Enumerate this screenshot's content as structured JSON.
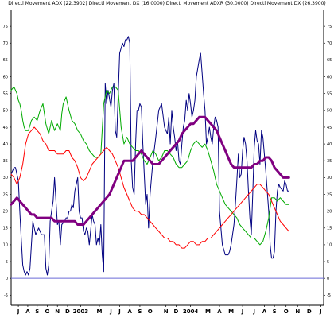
{
  "chart_data": {
    "type": "line",
    "title": "Directl Movement ADX (22.3902) Directl Movement DX (16.0000) Directl Movement ADXR (30.0000) Directl Movement DX (26.3900)",
    "xlabel": "",
    "ylabel": "",
    "ylim": [
      -8,
      80
    ],
    "y_ticks": [
      -5,
      0,
      5,
      10,
      15,
      20,
      25,
      30,
      35,
      40,
      45,
      50,
      55,
      60,
      65,
      70,
      75
    ],
    "x_labels": [
      "J",
      "A",
      "S",
      "O",
      "N",
      "D",
      "2003",
      "M",
      "J",
      "J",
      "A",
      "S",
      "O",
      "N",
      "D",
      "2004",
      "M",
      "A",
      "M",
      "J",
      "J",
      "A",
      "S",
      "O",
      "N",
      "D",
      "J"
    ],
    "x_label_positions": [
      5,
      11.5,
      18,
      25,
      32,
      39,
      48,
      61,
      69,
      75,
      82,
      89,
      96,
      107,
      114,
      124,
      136,
      144,
      152,
      160,
      168,
      175,
      182,
      190,
      198,
      206,
      214
    ],
    "x_range": [
      0,
      216
    ],
    "grid": false,
    "reference_line": 0,
    "series": [
      {
        "color": "#000080",
        "width": 1,
        "x": [
          0,
          2,
          3,
          4,
          5,
          6,
          7,
          8,
          9,
          10,
          11,
          12,
          13,
          15,
          17,
          19,
          21,
          23,
          24,
          25,
          26,
          27,
          28,
          29,
          30,
          32,
          33,
          34,
          35,
          37,
          38,
          39,
          40,
          41,
          42,
          43,
          44,
          45,
          46,
          47,
          48,
          49,
          50,
          51,
          52,
          53,
          54,
          56,
          57,
          58,
          59,
          60,
          61,
          62,
          63,
          64,
          65,
          66,
          67,
          69,
          70,
          71,
          72,
          73,
          75,
          77,
          78,
          79,
          80,
          81,
          82,
          83,
          84,
          85,
          86,
          87,
          88,
          89,
          90,
          91,
          93,
          94,
          95,
          96,
          98,
          100,
          102,
          104,
          106,
          108,
          109,
          110,
          111,
          112,
          113,
          114,
          115,
          116,
          117,
          118,
          119,
          120,
          121,
          122,
          123,
          124,
          125,
          126,
          127,
          128,
          130,
          131,
          132,
          133,
          134,
          135,
          136,
          137,
          138,
          139,
          140,
          141,
          142,
          143,
          144,
          145,
          146,
          148,
          150,
          151,
          152,
          154,
          155,
          156,
          157,
          158,
          159,
          160,
          161,
          162,
          163,
          164,
          165,
          166,
          167,
          168,
          169,
          170,
          171,
          172,
          173,
          174,
          175,
          176,
          178,
          179,
          180,
          181,
          182,
          183,
          184,
          185,
          186,
          188,
          189,
          190,
          191,
          192
        ],
        "values": [
          31,
          33,
          33,
          31,
          29,
          20,
          12,
          4,
          2,
          1,
          2,
          1,
          3,
          17,
          13,
          15,
          13,
          13,
          3,
          1,
          4,
          17,
          20,
          23,
          30,
          16,
          17,
          10,
          16,
          17,
          18,
          18,
          20,
          20,
          22,
          21,
          26,
          28,
          30,
          20,
          18,
          18,
          14,
          13,
          15,
          14,
          10,
          19,
          17,
          16,
          10,
          12,
          10,
          16,
          7,
          2,
          58,
          52,
          56,
          51,
          56,
          58,
          44,
          42,
          67,
          70,
          69,
          71,
          71,
          72,
          70,
          35,
          27,
          25,
          40,
          50,
          50,
          52,
          51,
          40,
          22,
          25,
          15,
          25,
          35,
          42,
          50,
          52,
          45,
          43,
          48,
          40,
          50,
          45,
          42,
          38,
          41,
          35,
          34,
          40,
          45,
          47,
          53,
          50,
          55,
          52,
          48,
          50,
          53,
          60,
          65,
          67,
          61,
          55,
          50,
          40,
          42,
          45,
          42,
          40,
          45,
          48,
          47,
          45,
          20,
          15,
          10,
          7,
          7,
          8,
          10,
          16,
          22,
          29,
          37,
          30,
          31,
          38,
          42,
          40,
          35,
          26,
          18,
          13,
          25,
          39,
          44,
          41,
          40,
          34,
          44,
          42,
          37,
          32,
          20,
          10,
          6,
          6,
          8,
          20,
          26,
          28,
          27,
          26,
          29,
          28,
          26,
          26
        ]
      },
      {
        "color": "#00aa00",
        "width": 1,
        "x": [
          0,
          2,
          4,
          5,
          6,
          7,
          8,
          9,
          10,
          12,
          14,
          16,
          18,
          20,
          22,
          24,
          26,
          28,
          30,
          32,
          34,
          35,
          36,
          38,
          40,
          42,
          44,
          46,
          48,
          50,
          52,
          54,
          56,
          58,
          60,
          62,
          64,
          66,
          68,
          70,
          72,
          74,
          76,
          78,
          80,
          82,
          84,
          86,
          88,
          90,
          92,
          94,
          96,
          98,
          100,
          102,
          104,
          106,
          108,
          110,
          112,
          114,
          116,
          118,
          120,
          122,
          124,
          126,
          128,
          130,
          132,
          134,
          136,
          138,
          140,
          142,
          144,
          146,
          148,
          150,
          152,
          154,
          156,
          158,
          160,
          162,
          164,
          166,
          168,
          170,
          172,
          174,
          176,
          178,
          180,
          182,
          184,
          186,
          188,
          190,
          192
        ],
        "values": [
          56,
          57,
          55,
          53,
          52,
          50,
          47,
          45,
          44,
          44,
          47,
          48,
          47,
          50,
          52,
          46,
          43,
          47,
          44,
          46,
          44,
          49,
          52,
          54,
          50,
          47,
          46,
          44,
          43,
          41,
          40,
          38,
          37,
          36,
          36,
          37,
          52,
          56,
          55,
          57,
          57,
          56,
          45,
          40,
          42,
          40,
          39,
          38,
          38,
          37,
          35,
          34,
          36,
          38,
          37,
          35,
          36,
          38,
          38,
          37,
          36,
          34,
          33,
          33,
          34,
          35,
          38,
          40,
          41,
          40,
          39,
          40,
          38,
          35,
          32,
          28,
          26,
          24,
          22,
          21,
          20,
          19,
          18,
          16,
          15,
          14,
          13,
          12,
          12,
          11,
          10,
          11,
          14,
          18,
          24,
          24,
          23,
          24,
          23,
          22,
          22
        ]
      },
      {
        "color": "#ff0000",
        "width": 1,
        "x": [
          0,
          2,
          4,
          6,
          8,
          10,
          12,
          14,
          16,
          18,
          20,
          22,
          24,
          26,
          28,
          30,
          32,
          34,
          36,
          38,
          40,
          42,
          44,
          46,
          48,
          50,
          52,
          54,
          56,
          58,
          60,
          62,
          64,
          66,
          68,
          70,
          72,
          74,
          76,
          78,
          80,
          82,
          84,
          86,
          88,
          90,
          92,
          94,
          96,
          98,
          100,
          102,
          104,
          106,
          108,
          110,
          112,
          114,
          116,
          118,
          120,
          122,
          124,
          126,
          128,
          130,
          132,
          134,
          136,
          138,
          140,
          142,
          144,
          146,
          148,
          150,
          152,
          154,
          156,
          158,
          160,
          162,
          164,
          166,
          168,
          170,
          172,
          174,
          176,
          178,
          180,
          182,
          184,
          186,
          188,
          190,
          192
        ],
        "values": [
          31,
          30,
          28,
          30,
          34,
          40,
          43,
          44,
          45,
          44,
          43,
          41,
          40,
          38,
          38,
          38,
          37,
          37,
          37,
          38,
          38,
          36,
          35,
          33,
          30,
          29,
          30,
          32,
          34,
          35,
          36,
          37,
          38,
          39,
          38,
          37,
          35,
          33,
          30,
          27,
          25,
          23,
          21,
          20,
          20,
          19,
          19,
          18,
          17,
          16,
          15,
          14,
          13,
          12,
          12,
          11,
          11,
          10,
          10,
          9,
          9,
          10,
          11,
          11,
          10,
          10,
          11,
          11,
          12,
          12,
          13,
          14,
          15,
          16,
          17,
          18,
          19,
          20,
          21,
          22,
          23,
          24,
          25,
          26,
          27,
          28,
          28,
          27,
          26,
          25,
          23,
          21,
          19,
          17,
          16,
          15,
          14
        ]
      },
      {
        "color": "#800080",
        "width": 3,
        "x": [
          0,
          2,
          4,
          6,
          8,
          10,
          12,
          14,
          16,
          18,
          20,
          22,
          24,
          26,
          28,
          30,
          32,
          34,
          36,
          38,
          40,
          42,
          44,
          46,
          48,
          50,
          52,
          54,
          56,
          58,
          60,
          62,
          64,
          66,
          68,
          70,
          72,
          74,
          76,
          78,
          80,
          82,
          84,
          86,
          88,
          90,
          92,
          94,
          96,
          98,
          100,
          102,
          104,
          106,
          108,
          110,
          112,
          114,
          116,
          118,
          120,
          122,
          124,
          126,
          128,
          130,
          132,
          134,
          136,
          138,
          140,
          142,
          144,
          146,
          148,
          150,
          152,
          154,
          156,
          158,
          160,
          162,
          164,
          166,
          168,
          170,
          172,
          174,
          176,
          178,
          180,
          182,
          184,
          186,
          188,
          190,
          192
        ],
        "values": [
          22,
          23,
          24,
          23,
          22,
          21,
          20,
          19,
          19,
          18,
          18,
          18,
          18,
          18,
          18,
          17,
          17,
          17,
          17,
          17,
          17,
          17,
          17,
          16,
          16,
          16,
          17,
          18,
          19,
          20,
          21,
          22,
          23,
          24,
          25,
          27,
          29,
          31,
          33,
          35,
          35,
          35,
          35,
          36,
          37,
          38,
          37,
          36,
          35,
          34,
          34,
          34,
          35,
          36,
          37,
          38,
          39,
          40,
          41,
          43,
          44,
          45,
          46,
          46,
          47,
          48,
          48,
          48,
          47,
          46,
          45,
          44,
          42,
          40,
          38,
          36,
          34,
          33,
          33,
          33,
          33,
          33,
          33,
          33,
          34,
          34,
          35,
          35,
          36,
          36,
          35,
          33,
          32,
          31,
          30,
          30,
          30
        ]
      }
    ]
  }
}
